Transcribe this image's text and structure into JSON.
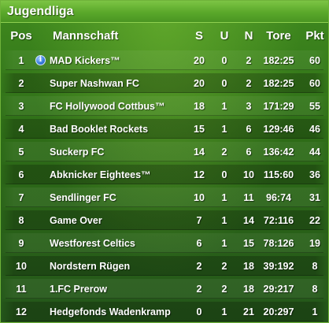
{
  "panel": {
    "title": "Jugendliga"
  },
  "columns": {
    "pos": "Pos",
    "team": "Mannschaft",
    "s": "S",
    "u": "U",
    "n": "N",
    "tore": "Tore",
    "pkt": "Pkt"
  },
  "rows": [
    {
      "pos": "1",
      "team": "MAD Kickers™",
      "s": "20",
      "u": "0",
      "n": "2",
      "tore": "182:25",
      "pkt": "60",
      "info_icon": "info-icon"
    },
    {
      "pos": "2",
      "team": "Super Nashwan FC",
      "s": "20",
      "u": "0",
      "n": "2",
      "tore": "182:25",
      "pkt": "60"
    },
    {
      "pos": "3",
      "team": "FC Hollywood Cottbus™",
      "s": "18",
      "u": "1",
      "n": "3",
      "tore": "171:29",
      "pkt": "55"
    },
    {
      "pos": "4",
      "team": "Bad Booklet Rockets",
      "s": "15",
      "u": "1",
      "n": "6",
      "tore": "129:46",
      "pkt": "46"
    },
    {
      "pos": "5",
      "team": "Suckerp FC",
      "s": "14",
      "u": "2",
      "n": "6",
      "tore": "136:42",
      "pkt": "44"
    },
    {
      "pos": "6",
      "team": "Abknicker Eightees™",
      "s": "12",
      "u": "0",
      "n": "10",
      "tore": "115:60",
      "pkt": "36"
    },
    {
      "pos": "7",
      "team": "Sendlinger FC",
      "s": "10",
      "u": "1",
      "n": "11",
      "tore": "96:74",
      "pkt": "31"
    },
    {
      "pos": "8",
      "team": "Game Over",
      "s": "7",
      "u": "1",
      "n": "14",
      "tore": "72:116",
      "pkt": "22"
    },
    {
      "pos": "9",
      "team": "Westforest Celtics",
      "s": "6",
      "u": "1",
      "n": "15",
      "tore": "78:126",
      "pkt": "19"
    },
    {
      "pos": "10",
      "team": "Nordstern Rügen",
      "s": "2",
      "u": "2",
      "n": "18",
      "tore": "39:192",
      "pkt": "8"
    },
    {
      "pos": "11",
      "team": "1.FC Prerow",
      "s": "2",
      "u": "2",
      "n": "18",
      "tore": "29:217",
      "pkt": "8"
    },
    {
      "pos": "12",
      "team": "Hedgefonds Wadenkramp",
      "s": "0",
      "u": "1",
      "n": "21",
      "tore": "20:297",
      "pkt": "1"
    }
  ],
  "colors": {
    "title_bar": "#5aa82a",
    "background": "#2d6b17",
    "text": "#ffffff",
    "info_icon": "#3b7fe0"
  }
}
